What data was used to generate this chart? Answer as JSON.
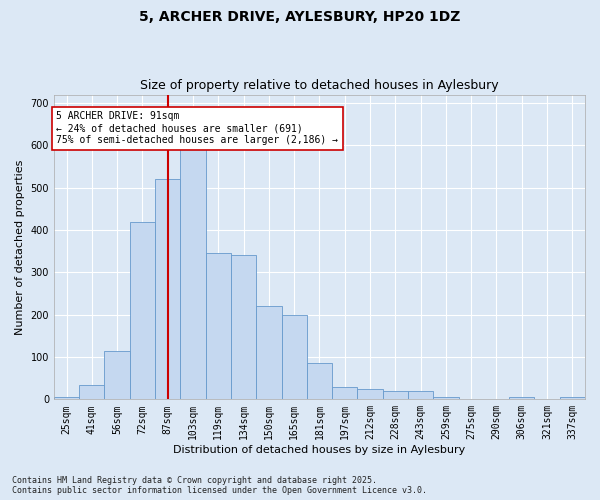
{
  "title_line1": "5, ARCHER DRIVE, AYLESBURY, HP20 1DZ",
  "title_line2": "Size of property relative to detached houses in Aylesbury",
  "xlabel": "Distribution of detached houses by size in Aylesbury",
  "ylabel": "Number of detached properties",
  "bins": [
    "25sqm",
    "41sqm",
    "56sqm",
    "72sqm",
    "87sqm",
    "103sqm",
    "119sqm",
    "134sqm",
    "150sqm",
    "165sqm",
    "181sqm",
    "197sqm",
    "212sqm",
    "228sqm",
    "243sqm",
    "259sqm",
    "275sqm",
    "290sqm",
    "306sqm",
    "321sqm",
    "337sqm"
  ],
  "values": [
    5,
    35,
    115,
    420,
    520,
    630,
    345,
    340,
    220,
    200,
    85,
    30,
    25,
    20,
    20,
    5,
    0,
    0,
    5,
    0,
    5
  ],
  "bar_color": "#c5d8f0",
  "bar_edge_color": "#6699cc",
  "vline_x_index": 4,
  "vline_color": "#cc0000",
  "annotation_text": "5 ARCHER DRIVE: 91sqm\n← 24% of detached houses are smaller (691)\n75% of semi-detached houses are larger (2,186) →",
  "annotation_box_color": "#ffffff",
  "annotation_box_edge": "#cc0000",
  "ylim": [
    0,
    720
  ],
  "yticks": [
    0,
    100,
    200,
    300,
    400,
    500,
    600,
    700
  ],
  "bg_color": "#dce8f5",
  "grid_color": "#ffffff",
  "footer_text": "Contains HM Land Registry data © Crown copyright and database right 2025.\nContains public sector information licensed under the Open Government Licence v3.0.",
  "fig_bg_color": "#dce8f5",
  "title_fontsize": 10,
  "subtitle_fontsize": 9,
  "tick_fontsize": 7,
  "label_fontsize": 8,
  "footer_fontsize": 6
}
